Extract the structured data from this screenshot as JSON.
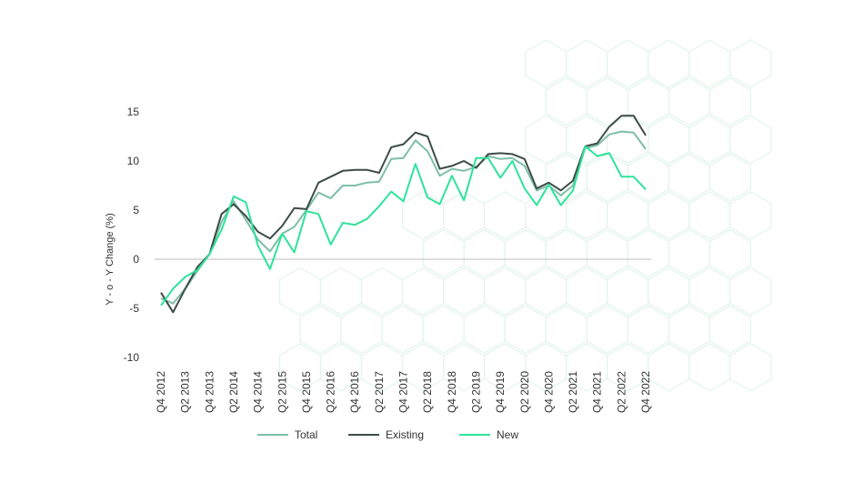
{
  "chart_data": {
    "type": "line",
    "title": "",
    "xlabel": "",
    "ylabel": "Y - o - Y Change (%)",
    "ylim": [
      -10,
      15
    ],
    "yticks": [
      15,
      10,
      5,
      0,
      -5,
      -10
    ],
    "grid": false,
    "zero_line": true,
    "legend_position": "bottom",
    "x": [
      "Q4 2012",
      "Q1 2013",
      "Q2 2013",
      "Q3 2013",
      "Q4 2013",
      "Q1 2014",
      "Q2 2014",
      "Q3 2014",
      "Q4 2014",
      "Q1 2015",
      "Q2 2015",
      "Q3 2015",
      "Q4 2015",
      "Q1 2016",
      "Q2 2016",
      "Q3 2016",
      "Q4 2016",
      "Q1 2017",
      "Q2 2017",
      "Q3 2017",
      "Q4 2017",
      "Q1 2018",
      "Q2 2018",
      "Q3 2018",
      "Q4 2018",
      "Q1 2019",
      "Q2 2019",
      "Q3 2019",
      "Q4 2019",
      "Q1 2020",
      "Q2 2020",
      "Q3 2020",
      "Q4 2020",
      "Q1 2021",
      "Q2 2021",
      "Q3 2021",
      "Q4 2021",
      "Q1 2022",
      "Q2 2022",
      "Q3 2022",
      "Q4 2022"
    ],
    "x_tick_labels": [
      "Q4 2012",
      "Q2 2013",
      "Q4 2013",
      "Q2 2014",
      "Q4 2014",
      "Q2 2015",
      "Q4 2015",
      "Q2 2016",
      "Q4 2016",
      "Q2 2017",
      "Q4 2017",
      "Q2 2018",
      "Q4 2018",
      "Q2 2019",
      "Q4 2019",
      "Q2 2020",
      "Q4 2020",
      "Q2 2021",
      "Q4 2021",
      "Q2 2022",
      "Q4 2022"
    ],
    "series": [
      {
        "name": "Total",
        "color": "#7dbfa6",
        "values": [
          -4.0,
          -4.5,
          -3.0,
          -1.2,
          0.5,
          3.8,
          5.9,
          4.0,
          2.0,
          0.8,
          2.6,
          3.3,
          5.0,
          6.8,
          6.2,
          7.5,
          7.5,
          7.8,
          7.9,
          10.2,
          10.3,
          12.1,
          11.0,
          8.5,
          9.2,
          9.0,
          9.4,
          10.5,
          10.2,
          10.3,
          9.5,
          7.0,
          7.5,
          6.5,
          7.5,
          11.3,
          11.6,
          12.7,
          13.0,
          12.9,
          11.2
        ]
      },
      {
        "name": "Existing",
        "color": "#3d4c47",
        "values": [
          -3.4,
          -5.4,
          -3.0,
          -0.8,
          0.5,
          4.6,
          5.6,
          4.4,
          2.8,
          2.1,
          3.4,
          5.2,
          5.1,
          7.8,
          8.4,
          9.0,
          9.1,
          9.1,
          8.8,
          11.4,
          11.7,
          12.9,
          12.5,
          9.2,
          9.5,
          10.0,
          9.3,
          10.7,
          10.8,
          10.7,
          10.2,
          7.2,
          7.8,
          7.0,
          8.0,
          11.5,
          11.8,
          13.5,
          14.6,
          14.6,
          12.6
        ]
      },
      {
        "name": "New",
        "color": "#2ee39a",
        "values": [
          -4.7,
          -3.0,
          -1.8,
          -1.1,
          0.5,
          3.0,
          6.4,
          5.8,
          1.4,
          -1.0,
          2.6,
          0.7,
          4.9,
          4.6,
          1.5,
          3.7,
          3.5,
          4.1,
          5.4,
          6.9,
          5.9,
          9.7,
          6.3,
          5.6,
          8.5,
          6.0,
          10.3,
          10.3,
          8.3,
          10.0,
          7.2,
          5.5,
          7.6,
          5.5,
          7.0,
          11.5,
          10.5,
          10.8,
          8.4,
          8.4,
          7.1
        ]
      }
    ]
  }
}
